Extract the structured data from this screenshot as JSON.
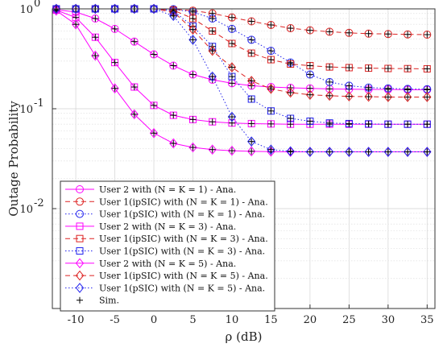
{
  "chart_data": {
    "type": "line",
    "title": "",
    "xlabel": "ρ (dB)",
    "ylabel": "Outage Probability",
    "xlim": [
      -13,
      36
    ],
    "ylim": [
      0.001,
      1
    ],
    "yscale": "log",
    "grid": true,
    "minor_grid": true,
    "x_ticks": [
      -10,
      -5,
      0,
      5,
      10,
      15,
      20,
      25,
      30,
      35
    ],
    "x_tick_labels": [
      "-10",
      "-5",
      "0",
      "5",
      "10",
      "15",
      "20",
      "25",
      "30",
      "35"
    ],
    "y_ticks": [
      1,
      0.1,
      0.01
    ],
    "y_tick_labels": [
      {
        "base": "10",
        "exp": "0"
      },
      {
        "base": "10",
        "exp": "-1"
      },
      {
        "base": "10",
        "exp": "-2"
      }
    ],
    "legend_position": "bottom-left",
    "x": [
      -12.5,
      -10,
      -7.5,
      -5,
      -2.5,
      0,
      2.5,
      5,
      7.5,
      10,
      12.5,
      15,
      17.5,
      20,
      22.5,
      25,
      27.5,
      30,
      32.5,
      35
    ],
    "series": [
      {
        "name": "User 2 with (N = K = 1) - Ana.",
        "color": "#ff00ff",
        "dash": "solid",
        "marker": "circle",
        "values": [
          0.98,
          0.93,
          0.8,
          0.63,
          0.47,
          0.35,
          0.27,
          0.22,
          0.195,
          0.18,
          0.17,
          0.165,
          0.162,
          0.16,
          0.158,
          0.157,
          0.156,
          0.156,
          0.155,
          0.155
        ]
      },
      {
        "name": "User 1(ipSIC) with (N = K = 1) - Ana.",
        "color": "#dd2222",
        "dash": "dashed",
        "marker": "circle",
        "values": [
          1.0,
          1.0,
          1.0,
          1.0,
          1.0,
          1.0,
          0.99,
          0.96,
          0.9,
          0.82,
          0.75,
          0.69,
          0.64,
          0.61,
          0.59,
          0.575,
          0.565,
          0.56,
          0.555,
          0.552
        ]
      },
      {
        "name": "User 1(pSIC) with (N = K = 1) - Ana.",
        "color": "#2222ee",
        "dash": "dotted",
        "marker": "circle",
        "values": [
          1.0,
          1.0,
          1.0,
          1.0,
          1.0,
          1.0,
          0.99,
          0.93,
          0.8,
          0.63,
          0.49,
          0.38,
          0.29,
          0.22,
          0.185,
          0.17,
          0.163,
          0.16,
          0.158,
          0.157
        ]
      },
      {
        "name": "User 2 with (N = K = 3) - Ana.",
        "color": "#ff00ff",
        "dash": "solid",
        "marker": "square",
        "values": [
          0.97,
          0.82,
          0.52,
          0.29,
          0.165,
          0.108,
          0.086,
          0.078,
          0.074,
          0.072,
          0.071,
          0.0705,
          0.07,
          0.07,
          0.07,
          0.07,
          0.07,
          0.07,
          0.07,
          0.07
        ]
      },
      {
        "name": "User 1(ipSIC) with (N = K = 3) - Ana.",
        "color": "#dd2222",
        "dash": "dashed",
        "marker": "square",
        "values": [
          1.0,
          1.0,
          1.0,
          1.0,
          1.0,
          1.0,
          0.97,
          0.8,
          0.6,
          0.45,
          0.36,
          0.31,
          0.28,
          0.27,
          0.262,
          0.258,
          0.255,
          0.253,
          0.252,
          0.251
        ]
      },
      {
        "name": "User 1(pSIC) with (N = K = 3) - Ana.",
        "color": "#2222ee",
        "dash": "dotted",
        "marker": "square",
        "values": [
          1.0,
          1.0,
          1.0,
          1.0,
          1.0,
          1.0,
          0.95,
          0.67,
          0.42,
          0.21,
          0.125,
          0.095,
          0.08,
          0.075,
          0.072,
          0.071,
          0.0705,
          0.07,
          0.07,
          0.07
        ]
      },
      {
        "name": "User 2 with (N = K = 5) - Ana.",
        "color": "#ff00ff",
        "dash": "solid",
        "marker": "diamond",
        "values": [
          0.96,
          0.7,
          0.34,
          0.16,
          0.088,
          0.057,
          0.045,
          0.041,
          0.039,
          0.038,
          0.0375,
          0.0372,
          0.037,
          0.037,
          0.037,
          0.037,
          0.037,
          0.037,
          0.037,
          0.037
        ]
      },
      {
        "name": "User 1(ipSIC) with (N = K = 5) - Ana.",
        "color": "#dd2222",
        "dash": "dashed",
        "marker": "diamond",
        "values": [
          1.0,
          1.0,
          1.0,
          1.0,
          1.0,
          1.0,
          0.93,
          0.62,
          0.38,
          0.26,
          0.19,
          0.158,
          0.145,
          0.138,
          0.135,
          0.133,
          0.132,
          0.131,
          0.131,
          0.131
        ]
      },
      {
        "name": "User 1(pSIC) with (N = K = 5) - Ana.",
        "color": "#2222ee",
        "dash": "dotted",
        "marker": "diamond",
        "values": [
          1.0,
          1.0,
          1.0,
          1.0,
          1.0,
          1.0,
          0.85,
          0.49,
          0.21,
          0.083,
          0.047,
          0.039,
          0.0375,
          0.037,
          0.037,
          0.037,
          0.037,
          0.037,
          0.037,
          0.037
        ]
      }
    ],
    "sim_legend_label": "Sim.",
    "sim_marker": "plus",
    "sim_color": "#000000"
  }
}
